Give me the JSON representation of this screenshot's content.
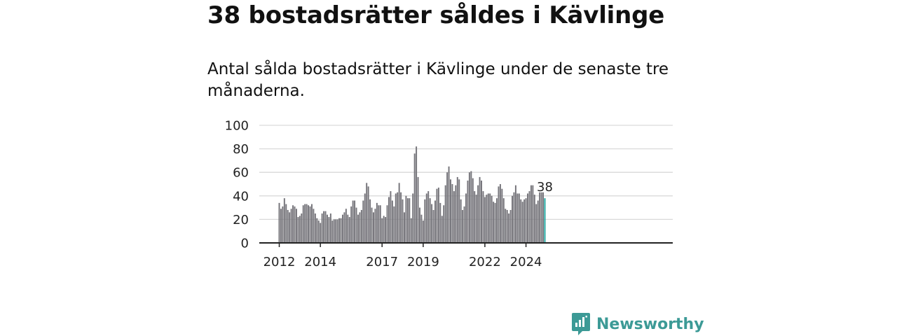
{
  "title": "38 bostadsrätter såldes i Kävlinge",
  "subtitle": "Antal sålda bostadsrätter i Kävlinge under de senaste tre månaderna.",
  "brand": {
    "name": "Newsworthy",
    "color": "#3c9a96"
  },
  "colors": {
    "bar": "#75747a",
    "highlight": "#1aa19b",
    "grid": "#d9d9d9",
    "axis": "#222222"
  },
  "chart_data": {
    "type": "bar",
    "title": "",
    "xlabel": "",
    "ylabel": "",
    "ylim": [
      0,
      100
    ],
    "yticks": [
      "0",
      "20",
      "40",
      "60",
      "80",
      "100"
    ],
    "xticks": [
      "2012",
      "2014",
      "2017",
      "2019",
      "2022",
      "2024"
    ],
    "start_month": "2012-01",
    "grid": true,
    "highlight_label": "38",
    "values": [
      34,
      29,
      31,
      38,
      33,
      28,
      26,
      29,
      32,
      31,
      29,
      22,
      23,
      25,
      32,
      33,
      33,
      32,
      31,
      33,
      29,
      25,
      21,
      19,
      17,
      25,
      27,
      27,
      24,
      22,
      25,
      19,
      20,
      20,
      20,
      21,
      21,
      24,
      26,
      29,
      24,
      22,
      31,
      36,
      36,
      30,
      24,
      26,
      28,
      36,
      42,
      51,
      48,
      37,
      30,
      26,
      29,
      34,
      32,
      32,
      21,
      23,
      22,
      32,
      39,
      44,
      36,
      31,
      42,
      43,
      51,
      43,
      37,
      26,
      40,
      38,
      38,
      21,
      42,
      76,
      82,
      56,
      30,
      24,
      19,
      37,
      42,
      44,
      38,
      33,
      28,
      36,
      46,
      47,
      34,
      23,
      32,
      49,
      60,
      65,
      54,
      50,
      44,
      49,
      56,
      54,
      37,
      28,
      31,
      42,
      53,
      60,
      61,
      55,
      44,
      41,
      49,
      56,
      53,
      44,
      39,
      41,
      42,
      42,
      40,
      35,
      34,
      38,
      48,
      50,
      46,
      38,
      29,
      28,
      25,
      28,
      40,
      43,
      49,
      42,
      42,
      37,
      35,
      37,
      38,
      42,
      44,
      49,
      49,
      41,
      33,
      36,
      43,
      43,
      43,
      38
    ]
  }
}
